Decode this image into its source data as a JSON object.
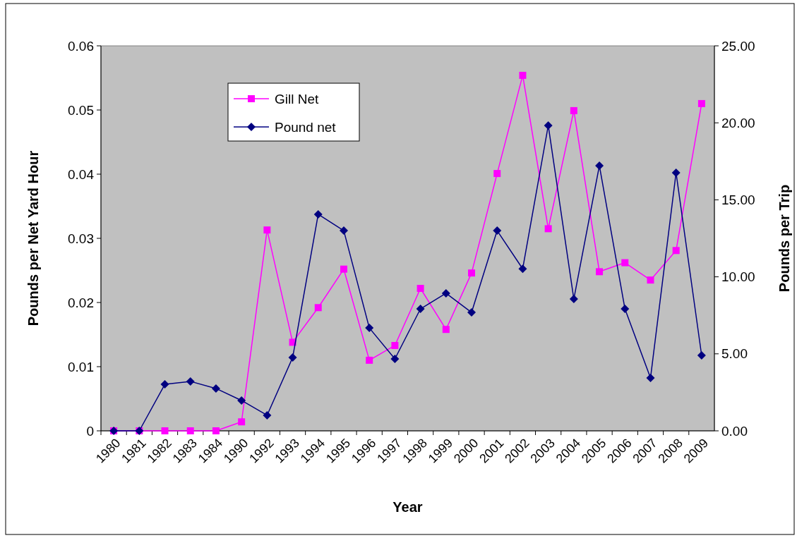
{
  "chart_data": {
    "type": "line",
    "xlabel": "Year",
    "ylabel": "Pounds per Net Yard Hour",
    "y2label": "Pounds per Trip",
    "categories": [
      "1980",
      "1981",
      "1982",
      "1983",
      "1984",
      "1990",
      "1992",
      "1993",
      "1994",
      "1995",
      "1996",
      "1997",
      "1998",
      "1999",
      "2000",
      "2001",
      "2002",
      "2003",
      "2004",
      "2005",
      "2006",
      "2007",
      "2008",
      "2009"
    ],
    "series": [
      {
        "name": "Gill Net",
        "color": "#ff00ff",
        "marker": "square",
        "values": [
          0,
          0,
          0,
          0,
          0,
          0.0014,
          0.0313,
          0.0138,
          0.0192,
          0.0252,
          0.011,
          0.0133,
          0.0222,
          0.0158,
          0.0246,
          0.0401,
          0.0554,
          0.0315,
          0.0499,
          0.0248,
          0.0262,
          0.0235,
          0.0281,
          0.051
        ]
      },
      {
        "name": "Pound net",
        "color": "#000080",
        "marker": "diamond",
        "axis": "y2",
        "values": [
          0,
          0,
          3.02,
          3.21,
          2.75,
          1.97,
          1.01,
          4.76,
          14.06,
          13.0,
          6.68,
          4.67,
          7.92,
          8.93,
          7.69,
          13.0,
          10.52,
          19.83,
          8.56,
          17.22,
          7.92,
          3.43,
          16.76,
          4.9
        ]
      }
    ],
    "ylim": [
      0,
      0.06
    ],
    "yticks": [
      {
        "value": 0,
        "label": "0"
      },
      0.01,
      0.02,
      0.03,
      0.04,
      0.05,
      0.06
    ],
    "y2lim": [
      0,
      25
    ],
    "y2ticks": [
      {
        "value": 0,
        "label": "0.00"
      },
      {
        "value": 5,
        "label": "5.00"
      },
      {
        "value": 10,
        "label": "10.00"
      },
      {
        "value": 15,
        "label": "15.00"
      },
      {
        "value": 20,
        "label": "20.00"
      },
      {
        "value": 25,
        "label": "25.00"
      }
    ],
    "legend": "top left",
    "grid": false
  }
}
